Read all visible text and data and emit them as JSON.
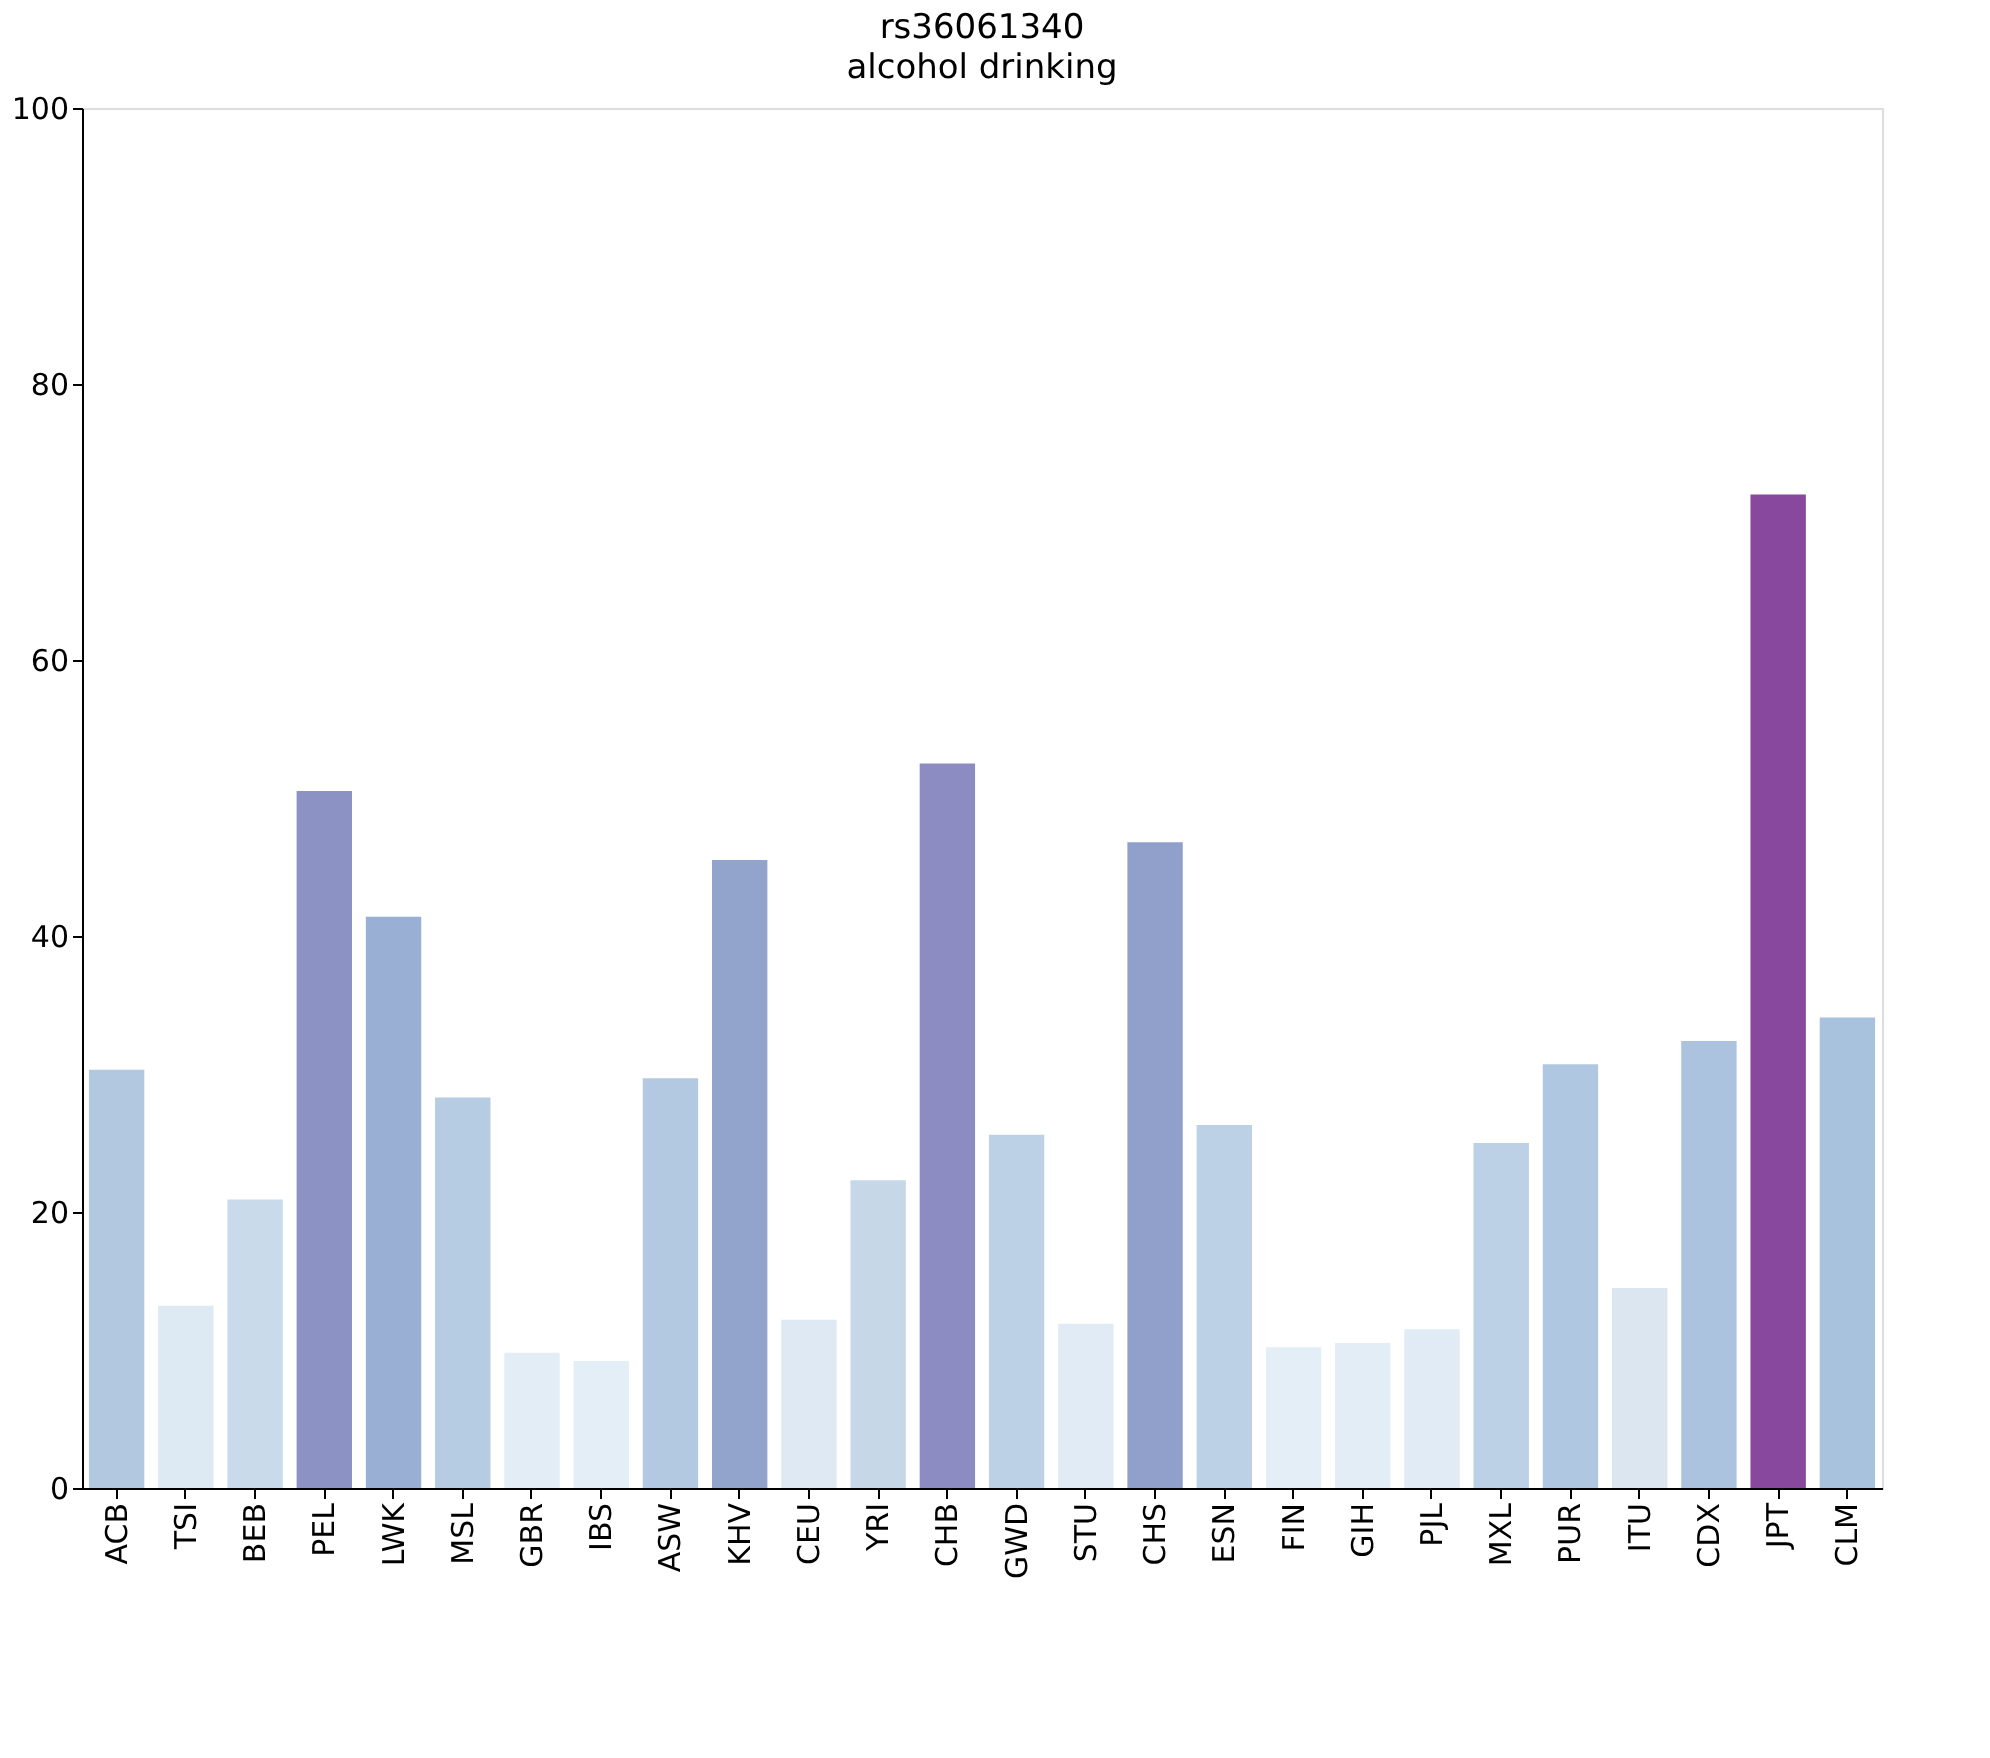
{
  "chart_data": {
    "type": "bar",
    "title": "rs36061340",
    "subtitle": "alcohol drinking",
    "categories": [
      "ACB",
      "TSI",
      "BEB",
      "PEL",
      "LWK",
      "MSL",
      "GBR",
      "IBS",
      "ASW",
      "KHV",
      "CEU",
      "YRI",
      "CHB",
      "GWD",
      "STU",
      "CHS",
      "ESN",
      "FIN",
      "GIH",
      "PJL",
      "MXL",
      "PUR",
      "ITU",
      "CDX",
      "JPT",
      "CLM"
    ],
    "values": [
      30.3,
      13.2,
      20.9,
      50.5,
      41.4,
      28.3,
      9.8,
      9.2,
      29.7,
      45.5,
      12.2,
      22.3,
      52.5,
      25.6,
      11.9,
      46.8,
      26.3,
      10.2,
      10.5,
      11.5,
      25.0,
      30.7,
      14.5,
      32.4,
      72.0,
      34.1
    ],
    "colors": [
      "#b1c8e0",
      "#dde9f3",
      "#c9daea",
      "#8c93c4",
      "#99b0d4",
      "#b6cce3",
      "#e3edf5",
      "#e4eef6",
      "#b3c9e1",
      "#92a3cc",
      "#dfe9f4",
      "#c6d7e8",
      "#8c8cc2",
      "#bcd1e6",
      "#e1ebf5",
      "#91a0ca",
      "#bcd1e6",
      "#e4eef6",
      "#e3edf5",
      "#e1ebf5",
      "#bcd1e6",
      "#afc7e0",
      "#dbe6f1",
      "#abc3df",
      "#88489d",
      "#a8c2de"
    ],
    "ylim": [
      0,
      100
    ],
    "yticks": [
      0,
      20,
      40,
      60,
      80,
      100
    ],
    "grid": false
  }
}
